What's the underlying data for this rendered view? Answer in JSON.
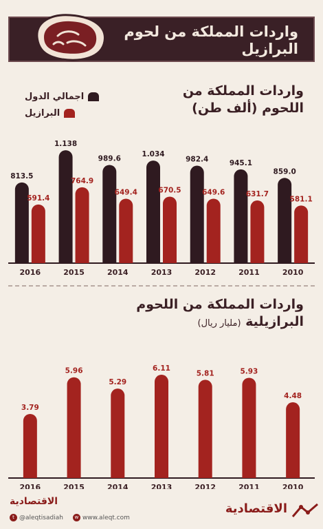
{
  "header": {
    "title": "واردات المملكة من لحوم البرازيل"
  },
  "chart1": {
    "title_main": "واردات المملكة من اللحوم",
    "title_unit": "(ألف طن)",
    "legend": [
      {
        "label": "اجمالي الدول",
        "color": "#2f1a20"
      },
      {
        "label": "البرازيل",
        "color": "#a3231f"
      }
    ]
  },
  "chart2": {
    "title_main": "واردات المملكة من اللحوم البرازيلية",
    "title_unit": "(مليار ريال)"
  },
  "footer": {
    "brand": "الاقتصادية",
    "twitter": "@aleqtisadiah",
    "website": "www.aleqt.com"
  },
  "colors": {
    "total": "#2f1a20",
    "brazil": "#a3231f",
    "axis": "#2f1a20",
    "text": "#3a1f24"
  },
  "chart_data": [
    {
      "type": "bar",
      "title": "واردات المملكة من اللحوم (ألف طن)",
      "categories": [
        "2016",
        "2015",
        "2014",
        "2013",
        "2012",
        "2011",
        "2010"
      ],
      "series": [
        {
          "name": "اجمالي الدول",
          "values": [
            813.5,
            1138,
            989.6,
            1034,
            982.4,
            945.1,
            859.0
          ],
          "labels": [
            "813.5",
            "1.138",
            "989.6",
            "1.034",
            "982.4",
            "945.1",
            "859.0"
          ]
        },
        {
          "name": "البرازيل",
          "values": [
            591.4,
            764.9,
            649.4,
            670.5,
            649.6,
            631.7,
            581.1
          ],
          "labels": [
            "591.4",
            "764.9",
            "649.4",
            "670.5",
            "649.6",
            "631.7",
            "581.1"
          ]
        }
      ],
      "ylim": [
        0,
        1250
      ],
      "grid": false
    },
    {
      "type": "bar",
      "title": "واردات المملكة من اللحوم البرازيلية (مليار ريال)",
      "categories": [
        "2016",
        "2015",
        "2014",
        "2013",
        "2012",
        "2011",
        "2010"
      ],
      "series": [
        {
          "name": "",
          "values": [
            3.79,
            5.96,
            5.29,
            6.11,
            5.81,
            5.93,
            4.48
          ],
          "labels": [
            "3.79",
            "5.96",
            "5.29",
            "6.11",
            "5.81",
            "5.93",
            "4.48"
          ]
        }
      ],
      "ylim": [
        0,
        6.6
      ],
      "grid": false
    }
  ]
}
